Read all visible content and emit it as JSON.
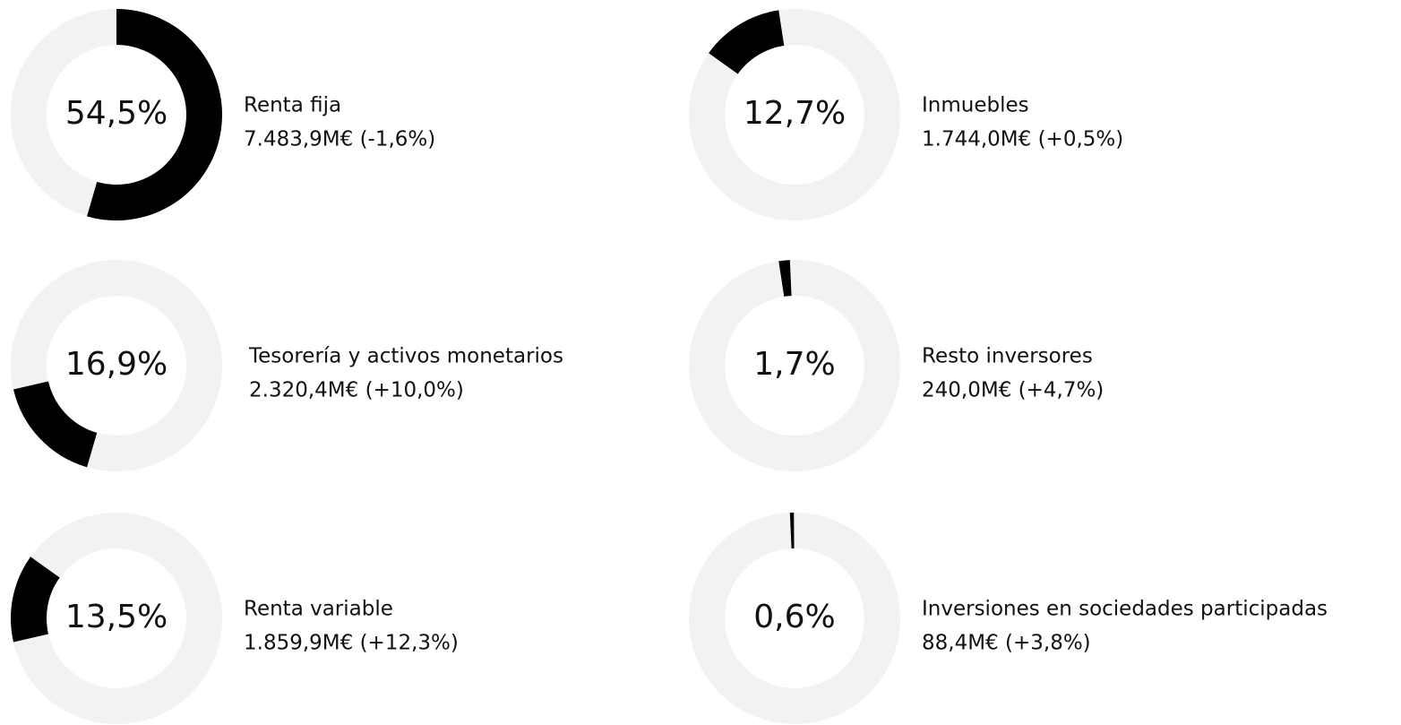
{
  "chart_data": {
    "type": "donut-list",
    "items": [
      {
        "name": "Renta fija",
        "value": 54.5,
        "value_label": "54,5%",
        "detail": "7.483,9M€ (-1,6%)"
      },
      {
        "name": "Tesorería y activos monetarios",
        "value": 16.9,
        "value_label": "16,9%",
        "detail": "2.320,4M€ (+10,0%)"
      },
      {
        "name": "Renta variable",
        "value": 13.5,
        "value_label": "13,5%",
        "detail": "1.859,9M€ (+12,3%)"
      },
      {
        "name": "Inmuebles",
        "value": 12.7,
        "value_label": "12,7%",
        "detail": "1.744,0M€ (+0,5%)"
      },
      {
        "name": "Resto inversores",
        "value": 1.7,
        "value_label": "1,7%",
        "detail": "240,0M€ (+4,7%)"
      },
      {
        "name": "Inversiones en sociedades participadas",
        "value": 0.6,
        "value_label": "0,6%",
        "detail": "88,4M€ (+3,8%)"
      }
    ],
    "color": "#000000",
    "track_color": "#f2f2f2"
  }
}
